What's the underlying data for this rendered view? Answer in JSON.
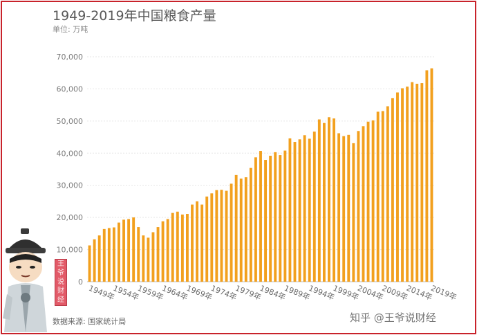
{
  "title": "1949-2019年中国粮食产量",
  "unit": "单位: 万吨",
  "source": "数据来源: 国家统计局",
  "watermark": "知乎 @王爷说财经",
  "seal_text": [
    "王",
    "爷",
    "说",
    "财",
    "经"
  ],
  "colors": {
    "bar": "#f2a01e",
    "frame": "#c8232b",
    "grid": "#e6e6e6"
  },
  "chart_data": {
    "type": "bar",
    "title": "1949-2019年中国粮食产量",
    "ylabel": "单位: 万吨",
    "xlabel": "",
    "ylim": [
      0,
      70000
    ],
    "yticks": [
      0,
      10000,
      20000,
      30000,
      40000,
      50000,
      60000,
      70000
    ],
    "ytick_labels": [
      "0",
      "10,000",
      "20,000",
      "30,000",
      "40,000",
      "50,000",
      "60,000",
      "70,000"
    ],
    "xtick_labels": [
      "1949年",
      "1954年",
      "1959年",
      "1964年",
      "1969年",
      "1974年",
      "1979年",
      "1984年",
      "1989年",
      "1994年",
      "1999年",
      "2004年",
      "2009年",
      "2014年",
      "2019年"
    ],
    "grid": true,
    "categories": [
      1949,
      1950,
      1951,
      1952,
      1953,
      1954,
      1955,
      1956,
      1957,
      1958,
      1959,
      1960,
      1961,
      1962,
      1963,
      1964,
      1965,
      1966,
      1967,
      1968,
      1969,
      1970,
      1971,
      1972,
      1973,
      1974,
      1975,
      1976,
      1977,
      1978,
      1979,
      1980,
      1981,
      1982,
      1983,
      1984,
      1985,
      1986,
      1987,
      1988,
      1989,
      1990,
      1991,
      1992,
      1993,
      1994,
      1995,
      1996,
      1997,
      1998,
      1999,
      2000,
      2001,
      2002,
      2003,
      2004,
      2005,
      2006,
      2007,
      2008,
      2009,
      2010,
      2011,
      2012,
      2013,
      2014,
      2015,
      2016,
      2017,
      2018,
      2019
    ],
    "values": [
      11300,
      13200,
      14400,
      16400,
      16700,
      16900,
      18400,
      19300,
      19500,
      20000,
      17000,
      14400,
      13700,
      15400,
      17000,
      18800,
      19500,
      21400,
      21800,
      20900,
      21100,
      24000,
      25000,
      24000,
      26500,
      27500,
      28500,
      28600,
      28300,
      30500,
      33200,
      32100,
      32500,
      35400,
      38700,
      40700,
      37900,
      39200,
      40300,
      39400,
      40800,
      44600,
      43500,
      44300,
      45600,
      44500,
      46700,
      50500,
      49400,
      51200,
      50800,
      46200,
      45300,
      45700,
      43100,
      46900,
      48400,
      49800,
      50200,
      52900,
      53100,
      54600,
      57100,
      58900,
      60200,
      60700,
      62100,
      61600,
      61800,
      65800,
      66400
    ]
  }
}
